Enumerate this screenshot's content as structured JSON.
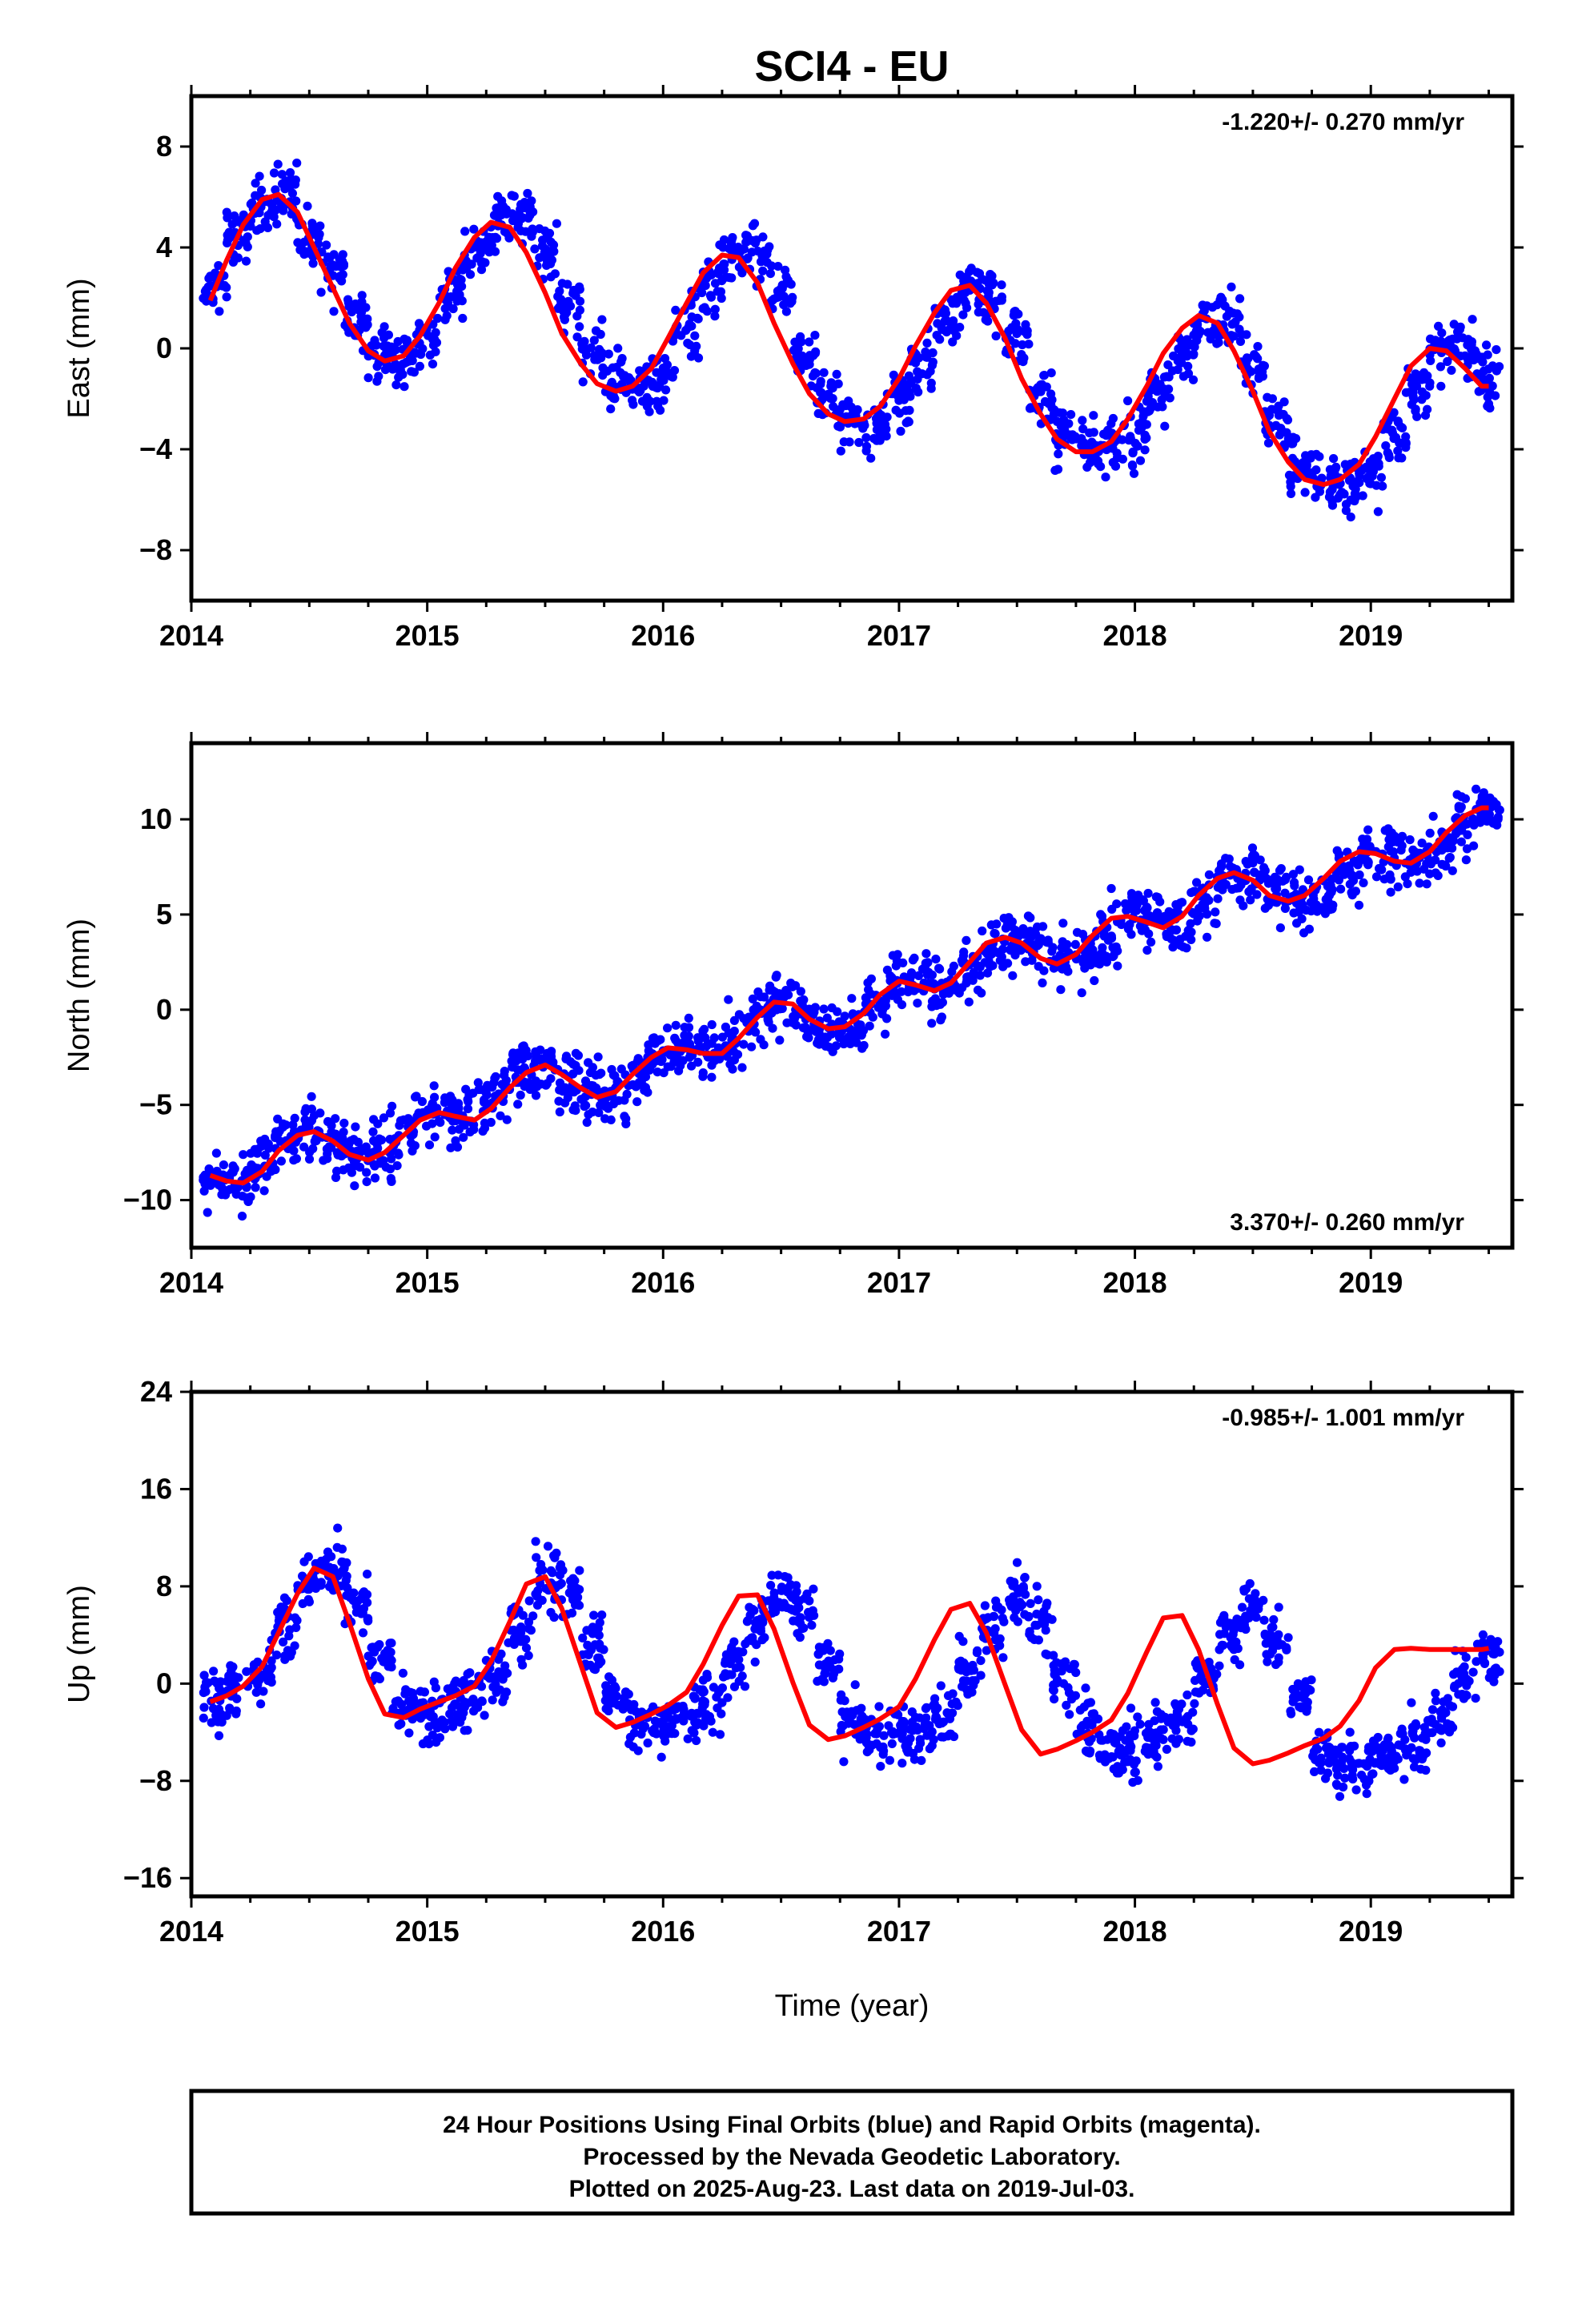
{
  "title": "SCI4 - EU",
  "xlabel": "Time (year)",
  "caption": [
    "24 Hour Positions Using Final Orbits (blue) and Rapid Orbits (magenta).",
    "Processed by the Nevada Geodetic Laboratory.",
    "Plotted on 2025-Aug-23. Last data on 2019-Jul-03."
  ],
  "colors": {
    "points": "#0000ff",
    "model": "#ff0000",
    "axes": "#000000"
  },
  "chart_data": [
    {
      "type": "scatter",
      "component": "East",
      "ylabel": "East (mm)",
      "rate_label": "-1.220+/- 0.270 mm/yr",
      "rate_label_position": "top-right",
      "xlim": [
        2014.0,
        2019.6
      ],
      "ylim": [
        -10,
        10
      ],
      "xticks": [
        2014,
        2015,
        2016,
        2017,
        2018,
        2019
      ],
      "yticks": [
        -8,
        -4,
        0,
        4,
        8
      ],
      "grid": false,
      "series": [
        {
          "style": "points",
          "x": [
            2014.1,
            2014.2,
            2014.3,
            2014.4,
            2014.5,
            2014.6,
            2014.7,
            2014.8,
            2014.9,
            2015.0,
            2015.1,
            2015.2,
            2015.3,
            2015.4,
            2015.5,
            2015.6,
            2015.7,
            2015.8,
            2015.9,
            2016.0,
            2016.1,
            2016.2,
            2016.3,
            2016.4,
            2016.5,
            2016.6,
            2016.7,
            2016.8,
            2016.9,
            2017.0,
            2017.1,
            2017.2,
            2017.3,
            2017.4,
            2017.5,
            2017.6,
            2017.7,
            2017.8,
            2017.9,
            2018.0,
            2018.1,
            2018.2,
            2018.3,
            2018.4,
            2018.5,
            2018.6,
            2018.7,
            2018.8,
            2018.9,
            2019.0,
            2019.1,
            2019.2,
            2019.3,
            2019.4,
            2019.5
          ],
          "y": [
            2.4,
            4.4,
            5.5,
            6.1,
            4.4,
            3.2,
            1.3,
            -0.2,
            -0.5,
            0.3,
            2.2,
            3.8,
            4.7,
            5.1,
            3.9,
            1.7,
            -0.1,
            -1.3,
            -1.6,
            -1.0,
            0.9,
            2.6,
            3.7,
            3.8,
            2.2,
            -0.3,
            -2.0,
            -2.8,
            -2.9,
            -2.1,
            -0.5,
            1.1,
            2.3,
            2.3,
            0.6,
            -1.8,
            -3.3,
            -4.0,
            -4.0,
            -3.5,
            -1.8,
            -0.2,
            1.0,
            1.1,
            -0.7,
            -3.0,
            -4.5,
            -5.3,
            -5.4,
            -5.0,
            -3.4,
            -1.5,
            -0.2,
            0.0,
            -1.1
          ]
        },
        {
          "style": "line",
          "x": [
            2014.08,
            2014.15,
            2014.22,
            2014.3,
            2014.37,
            2014.45,
            2014.52,
            2014.6,
            2014.67,
            2014.75,
            2014.82,
            2014.9,
            2014.97,
            2015.05,
            2015.12,
            2015.2,
            2015.27,
            2015.35,
            2015.42,
            2015.5,
            2015.57,
            2015.65,
            2015.72,
            2015.8,
            2015.87,
            2015.95,
            2016.02,
            2016.1,
            2016.17,
            2016.25,
            2016.32,
            2016.4,
            2016.47,
            2016.55,
            2016.62,
            2016.7,
            2016.77,
            2016.85,
            2016.92,
            2017.0,
            2017.07,
            2017.15,
            2017.22,
            2017.3,
            2017.37,
            2017.45,
            2017.52,
            2017.6,
            2017.67,
            2017.75,
            2017.82,
            2017.9,
            2017.97,
            2018.05,
            2018.12,
            2018.2,
            2018.27,
            2018.35,
            2018.42,
            2018.5,
            2018.57,
            2018.65,
            2018.72,
            2018.8,
            2018.87,
            2018.95,
            2019.02,
            2019.1,
            2019.17,
            2019.25,
            2019.32,
            2019.4,
            2019.47,
            2019.5
          ],
          "y": [
            1.9,
            3.5,
            4.9,
            5.9,
            6.1,
            5.4,
            4.0,
            2.4,
            1.0,
            -0.1,
            -0.5,
            -0.3,
            0.5,
            1.8,
            3.2,
            4.4,
            5.0,
            4.8,
            3.8,
            2.2,
            0.6,
            -0.6,
            -1.4,
            -1.7,
            -1.5,
            -0.8,
            0.4,
            1.8,
            3.0,
            3.7,
            3.6,
            2.6,
            1.0,
            -0.6,
            -1.8,
            -2.6,
            -2.9,
            -2.8,
            -2.3,
            -1.2,
            0.1,
            1.4,
            2.3,
            2.5,
            1.8,
            0.4,
            -1.2,
            -2.6,
            -3.6,
            -4.1,
            -4.1,
            -3.7,
            -2.8,
            -1.5,
            -0.2,
            0.8,
            1.3,
            1.0,
            -0.1,
            -1.7,
            -3.3,
            -4.5,
            -5.2,
            -5.4,
            -5.2,
            -4.6,
            -3.5,
            -2.0,
            -0.7,
            0.0,
            -0.1,
            -0.8,
            -1.5,
            -1.5
          ]
        }
      ]
    },
    {
      "type": "scatter",
      "component": "North",
      "ylabel": "North (mm)",
      "rate_label": "3.370+/- 0.260 mm/yr",
      "rate_label_position": "bottom-right",
      "xlim": [
        2014.0,
        2019.6
      ],
      "ylim": [
        -12.5,
        14
      ],
      "xticks": [
        2014,
        2015,
        2016,
        2017,
        2018,
        2019
      ],
      "yticks": [
        -10,
        -5,
        0,
        5,
        10
      ],
      "grid": false,
      "series": [
        {
          "style": "points",
          "x": [
            2014.1,
            2014.2,
            2014.3,
            2014.4,
            2014.5,
            2014.6,
            2014.7,
            2014.8,
            2014.9,
            2015.0,
            2015.1,
            2015.2,
            2015.3,
            2015.4,
            2015.5,
            2015.6,
            2015.7,
            2015.8,
            2015.9,
            2016.0,
            2016.1,
            2016.2,
            2016.3,
            2016.4,
            2016.5,
            2016.6,
            2016.7,
            2016.8,
            2016.9,
            2017.0,
            2017.1,
            2017.2,
            2017.3,
            2017.4,
            2017.5,
            2017.6,
            2017.7,
            2017.8,
            2017.9,
            2018.0,
            2018.1,
            2018.2,
            2018.3,
            2018.4,
            2018.5,
            2018.6,
            2018.7,
            2018.8,
            2018.9,
            2019.0,
            2019.1,
            2019.2,
            2019.3,
            2019.4,
            2019.5
          ],
          "y": [
            -9.0,
            -9.0,
            -7.9,
            -6.8,
            -6.3,
            -6.9,
            -7.6,
            -7.4,
            -6.4,
            -5.5,
            -5.6,
            -5.4,
            -4.3,
            -3.2,
            -3.0,
            -3.7,
            -4.4,
            -4.3,
            -3.2,
            -2.1,
            -2.0,
            -2.3,
            -1.6,
            -0.3,
            0.4,
            -0.2,
            -1.1,
            -0.9,
            0.3,
            1.4,
            1.5,
            1.3,
            2.2,
            3.4,
            3.8,
            3.2,
            2.4,
            2.7,
            4.0,
            5.0,
            4.8,
            4.6,
            5.6,
            6.8,
            7.1,
            6.3,
            5.6,
            6.0,
            7.2,
            8.2,
            8.2,
            7.8,
            8.6,
            9.7,
            10.5
          ]
        },
        {
          "style": "line",
          "x": [
            2014.08,
            2014.15,
            2014.22,
            2014.3,
            2014.37,
            2014.45,
            2014.52,
            2014.6,
            2014.67,
            2014.75,
            2014.82,
            2014.9,
            2014.97,
            2015.05,
            2015.12,
            2015.2,
            2015.27,
            2015.35,
            2015.42,
            2015.5,
            2015.57,
            2015.65,
            2015.72,
            2015.8,
            2015.87,
            2015.95,
            2016.02,
            2016.1,
            2016.17,
            2016.25,
            2016.32,
            2016.4,
            2016.47,
            2016.55,
            2016.62,
            2016.7,
            2016.77,
            2016.85,
            2016.92,
            2017.0,
            2017.07,
            2017.15,
            2017.22,
            2017.3,
            2017.37,
            2017.45,
            2017.52,
            2017.6,
            2017.67,
            2017.75,
            2017.82,
            2017.9,
            2017.97,
            2018.05,
            2018.12,
            2018.2,
            2018.27,
            2018.35,
            2018.42,
            2018.5,
            2018.57,
            2018.65,
            2018.72,
            2018.8,
            2018.87,
            2018.95,
            2019.02,
            2019.1,
            2019.17,
            2019.25,
            2019.32,
            2019.4,
            2019.47,
            2019.5
          ],
          "y": [
            -8.7,
            -9.0,
            -9.1,
            -8.5,
            -7.4,
            -6.6,
            -6.4,
            -6.9,
            -7.6,
            -7.9,
            -7.5,
            -6.6,
            -5.8,
            -5.4,
            -5.6,
            -5.8,
            -5.2,
            -4.1,
            -3.3,
            -2.9,
            -3.4,
            -4.1,
            -4.6,
            -4.3,
            -3.4,
            -2.5,
            -2.0,
            -2.1,
            -2.3,
            -2.3,
            -1.5,
            -0.4,
            0.4,
            0.3,
            -0.5,
            -1.0,
            -0.9,
            -0.2,
            0.8,
            1.5,
            1.3,
            1.0,
            1.4,
            2.5,
            3.5,
            3.8,
            3.5,
            2.7,
            2.4,
            2.9,
            3.9,
            4.8,
            4.9,
            4.6,
            4.3,
            4.9,
            6.0,
            6.9,
            7.2,
            6.8,
            6.0,
            5.7,
            6.0,
            6.9,
            7.8,
            8.3,
            8.2,
            7.8,
            7.7,
            8.3,
            9.3,
            10.2,
            10.6,
            10.6
          ]
        }
      ]
    },
    {
      "type": "scatter",
      "component": "Up",
      "ylabel": "Up (mm)",
      "rate_label": "-0.985+/- 1.001 mm/yr",
      "rate_label_position": "top-right",
      "xlim": [
        2014.0,
        2019.6
      ],
      "ylim": [
        -17.5,
        24
      ],
      "xticks": [
        2014,
        2015,
        2016,
        2017,
        2018,
        2019
      ],
      "yticks": [
        -16,
        -8,
        0,
        8,
        16,
        24
      ],
      "grid": false,
      "series": [
        {
          "style": "points",
          "x": [
            2014.1,
            2014.2,
            2014.3,
            2014.4,
            2014.5,
            2014.6,
            2014.7,
            2014.8,
            2014.9,
            2015.0,
            2015.1,
            2015.2,
            2015.3,
            2015.4,
            2015.5,
            2015.6,
            2015.7,
            2015.8,
            2015.9,
            2016.0,
            2016.1,
            2016.2,
            2016.3,
            2016.4,
            2016.5,
            2016.6,
            2016.7,
            2016.8,
            2016.9,
            2017.0,
            2017.1,
            2017.2,
            2017.3,
            2017.4,
            2017.5,
            2017.6,
            2017.7,
            2017.8,
            2017.9,
            2018.0,
            2018.1,
            2018.2,
            2018.3,
            2018.4,
            2018.5,
            2018.6,
            2018.7,
            2018.8,
            2018.9,
            2019.0,
            2019.1,
            2019.2,
            2019.3,
            2019.4,
            2019.5
          ],
          "y": [
            -1.2,
            -0.6,
            1.0,
            4.5,
            8.3,
            9.8,
            6.8,
            2.0,
            -1.8,
            -2.6,
            -1.9,
            -1.3,
            0.6,
            4.6,
            8.3,
            8.0,
            3.4,
            -1.1,
            -3.3,
            -3.2,
            -2.3,
            -1.5,
            1.1,
            5.0,
            7.4,
            6.1,
            1.6,
            -2.7,
            -4.6,
            -4.2,
            -3.2,
            -2.3,
            0.9,
            4.8,
            6.7,
            4.9,
            0.2,
            -3.9,
            -5.6,
            -5.1,
            -4.2,
            -3.2,
            0.2,
            4.2,
            5.9,
            3.5,
            -1.3,
            -5.4,
            -6.6,
            -6.4,
            -5.7,
            -4.7,
            -2.9,
            0.5,
            2.5
          ]
        },
        {
          "style": "line",
          "x": [
            2014.08,
            2014.15,
            2014.22,
            2014.3,
            2014.37,
            2014.45,
            2014.52,
            2014.6,
            2014.67,
            2014.75,
            2014.82,
            2014.9,
            2014.97,
            2015.05,
            2015.12,
            2015.2,
            2015.27,
            2015.35,
            2015.42,
            2015.5,
            2015.57,
            2015.65,
            2015.72,
            2015.8,
            2015.87,
            2015.95,
            2016.02,
            2016.1,
            2016.17,
            2016.25,
            2016.32,
            2016.4,
            2016.47,
            2016.55,
            2016.62,
            2016.7,
            2016.77,
            2016.85,
            2016.92,
            2017.0,
            2017.07,
            2017.15,
            2017.22,
            2017.3,
            2017.37,
            2017.45,
            2017.52,
            2017.6,
            2017.67,
            2017.75,
            2017.82,
            2017.9,
            2017.97,
            2018.05,
            2018.12,
            2018.2,
            2018.27,
            2018.35,
            2018.42,
            2018.5,
            2018.57,
            2018.65,
            2018.72,
            2018.8,
            2018.87,
            2018.95,
            2019.02,
            2019.1,
            2019.17,
            2019.25,
            2019.32,
            2019.4,
            2019.47,
            2019.5
          ],
          "y": [
            -1.5,
            -1.0,
            -0.2,
            1.4,
            4.2,
            7.4,
            9.5,
            8.8,
            5.0,
            0.4,
            -2.5,
            -2.8,
            -2.1,
            -1.5,
            -1.0,
            -0.2,
            1.8,
            5.1,
            8.2,
            8.8,
            6.2,
            1.6,
            -2.4,
            -3.6,
            -3.2,
            -2.5,
            -1.8,
            -0.7,
            1.6,
            4.8,
            7.2,
            7.3,
            4.5,
            0.1,
            -3.4,
            -4.6,
            -4.3,
            -3.6,
            -2.9,
            -1.9,
            0.4,
            3.6,
            6.1,
            6.6,
            4.2,
            -0.1,
            -3.8,
            -5.8,
            -5.4,
            -4.7,
            -4.0,
            -3.0,
            -0.8,
            2.6,
            5.4,
            5.6,
            2.8,
            -1.7,
            -5.3,
            -6.6,
            -6.3,
            -5.7,
            -5.1,
            -4.5,
            -3.5,
            -1.4,
            1.3,
            2.8,
            2.9,
            2.8,
            2.8,
            2.8,
            2.8,
            2.9
          ]
        }
      ]
    }
  ]
}
